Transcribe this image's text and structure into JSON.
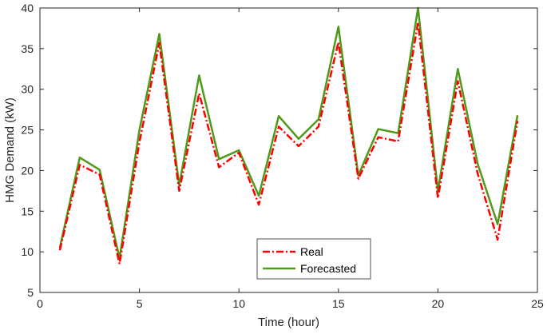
{
  "chart_data": {
    "type": "line",
    "title": "",
    "xlabel": "Time (hour)",
    "ylabel": "HMG Demand (kW)",
    "xlim": [
      0,
      25
    ],
    "ylim": [
      5,
      40
    ],
    "xticks": [
      0,
      5,
      10,
      15,
      20,
      25
    ],
    "yticks": [
      5,
      10,
      15,
      20,
      25,
      30,
      35,
      40
    ],
    "grid": false,
    "legend_position": "bottom-center",
    "x": [
      1,
      2,
      3,
      4,
      5,
      6,
      7,
      8,
      9,
      10,
      11,
      12,
      13,
      14,
      15,
      16,
      17,
      18,
      19,
      20,
      21,
      22,
      23,
      24
    ],
    "series": [
      {
        "name": "Real",
        "color": "#ff0000",
        "style": "dash-dot",
        "values": [
          10.2,
          20.7,
          19.5,
          8.5,
          23.5,
          35.7,
          17.5,
          29.5,
          20.4,
          22.2,
          15.8,
          25.4,
          23.0,
          25.4,
          35.8,
          19.0,
          24.1,
          23.6,
          38.2,
          16.6,
          31.0,
          19.6,
          11.5,
          26.1
        ]
      },
      {
        "name": "Forecasted",
        "color": "#4f9a19",
        "style": "solid",
        "values": [
          10.5,
          21.6,
          20.1,
          9.2,
          25.0,
          36.8,
          18.2,
          31.7,
          21.4,
          22.5,
          16.9,
          26.7,
          23.9,
          26.3,
          37.7,
          19.4,
          25.1,
          24.6,
          40.0,
          17.5,
          32.5,
          20.8,
          13.4,
          26.8
        ]
      }
    ]
  }
}
